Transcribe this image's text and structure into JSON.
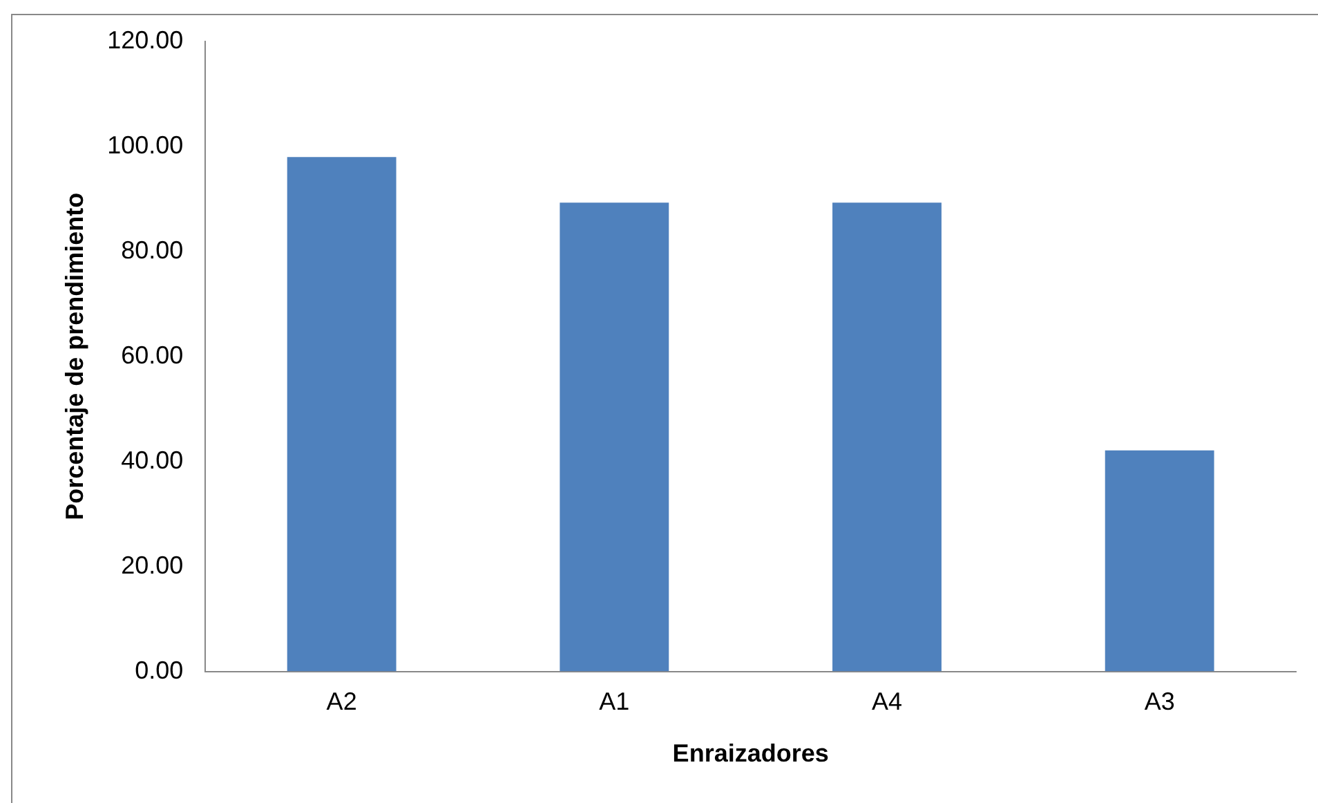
{
  "chart_data": {
    "type": "bar",
    "xlabel": "Enraizadores",
    "ylabel": "Porcentaje de prendimiento",
    "categories": [
      "A2",
      "A1",
      "A4",
      "A3"
    ],
    "values": [
      98.0,
      89.3,
      89.3,
      42.1
    ],
    "color": "#4f81bd",
    "ylim": [
      0,
      120
    ],
    "yticks": [
      {
        "value": 0,
        "label": "0.00"
      },
      {
        "value": 20,
        "label": "20.00"
      },
      {
        "value": 40,
        "label": "40.00"
      },
      {
        "value": 60,
        "label": "60.00"
      },
      {
        "value": 80,
        "label": "80.00"
      },
      {
        "value": 100,
        "label": "100.00"
      },
      {
        "value": 120,
        "label": "120.00"
      }
    ],
    "grid": false,
    "legend": false
  }
}
